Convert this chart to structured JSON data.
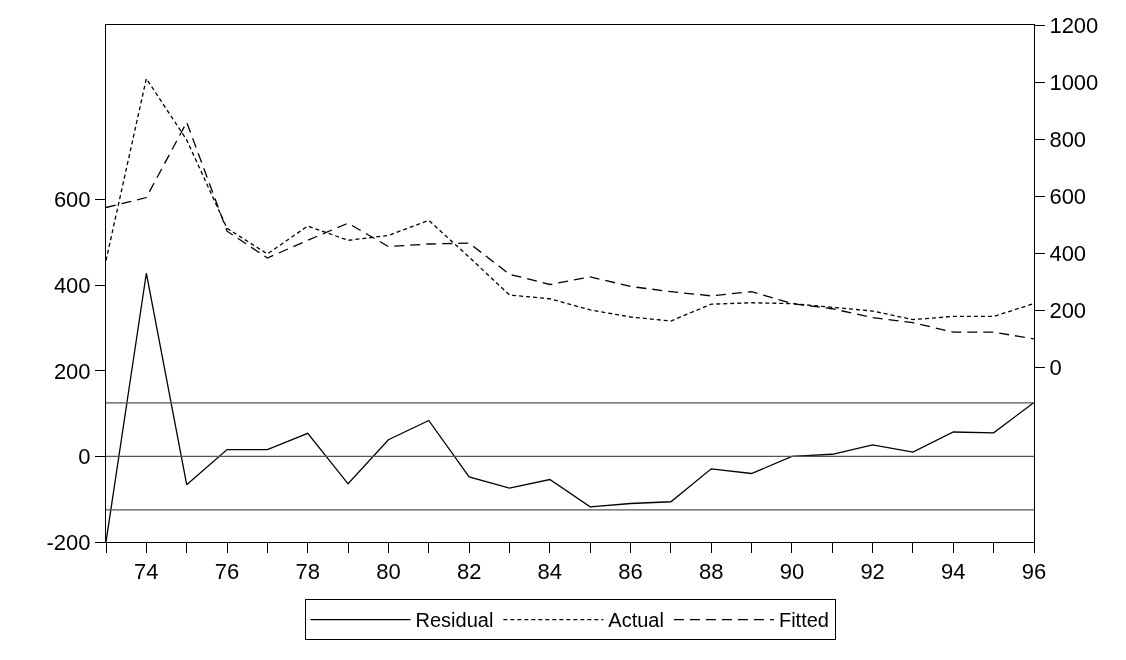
{
  "chart_data": {
    "type": "line",
    "x": [
      73,
      74,
      75,
      76,
      77,
      78,
      79,
      80,
      81,
      82,
      83,
      84,
      85,
      86,
      87,
      88,
      89,
      90,
      91,
      92,
      93,
      94,
      95,
      96
    ],
    "series": [
      {
        "name": "Residual",
        "color": "#000000",
        "line_style": "solid",
        "axis": "y",
        "values": [
          -200,
          428,
          -66,
          16,
          16,
          54,
          -64,
          39,
          84,
          -48,
          -74,
          -54,
          -118,
          -110,
          -106,
          -29,
          -40,
          0,
          5,
          27,
          10,
          57,
          55,
          126
        ]
      },
      {
        "name": "Actual",
        "color": "#000000",
        "line_style": "dotted",
        "axis": "y2",
        "values": [
          374,
          1012,
          797,
          487,
          397,
          495,
          445,
          462,
          515,
          386,
          253,
          240,
          201,
          176,
          162,
          221,
          226,
          223,
          210,
          197,
          167,
          178,
          178,
          223
        ]
      },
      {
        "name": "Fitted",
        "color": "#000000",
        "line_style": "dashed",
        "axis": "y2",
        "values": [
          560,
          595,
          859,
          477,
          383,
          445,
          505,
          423,
          432,
          435,
          326,
          290,
          317,
          283,
          265,
          250,
          265,
          223,
          205,
          174,
          156,
          123,
          123,
          99
        ]
      }
    ],
    "xlim": [
      73,
      96
    ],
    "xticks": [
      {
        "value": 73,
        "label": null
      },
      74,
      {
        "value": 75,
        "label": null
      },
      76,
      {
        "value": 77,
        "label": null
      },
      78,
      {
        "value": 79,
        "label": null
      },
      80,
      {
        "value": 81,
        "label": null
      },
      82,
      {
        "value": 83,
        "label": null
      },
      84,
      {
        "value": 85,
        "label": null
      },
      86,
      {
        "value": 87,
        "label": null
      },
      88,
      {
        "value": 89,
        "label": null
      },
      90,
      {
        "value": 91,
        "label": null
      },
      92,
      {
        "value": 93,
        "label": null
      },
      94,
      {
        "value": 95,
        "label": null
      },
      96
    ],
    "ylim": [
      -200,
      1008
    ],
    "yticks": [
      -200,
      0,
      200,
      400,
      600
    ],
    "y2lim": [
      -613,
      1200
    ],
    "y2ticks": [
      0,
      200,
      400,
      600,
      800,
      1000,
      1200
    ],
    "ref_lines": [
      {
        "axis": "y",
        "value": 125,
        "color": "#555555"
      },
      {
        "axis": "y",
        "value": 0,
        "color": "#555555"
      },
      {
        "axis": "y",
        "value": -125,
        "color": "#555555"
      }
    ],
    "grid": false,
    "legend": "bottom"
  }
}
